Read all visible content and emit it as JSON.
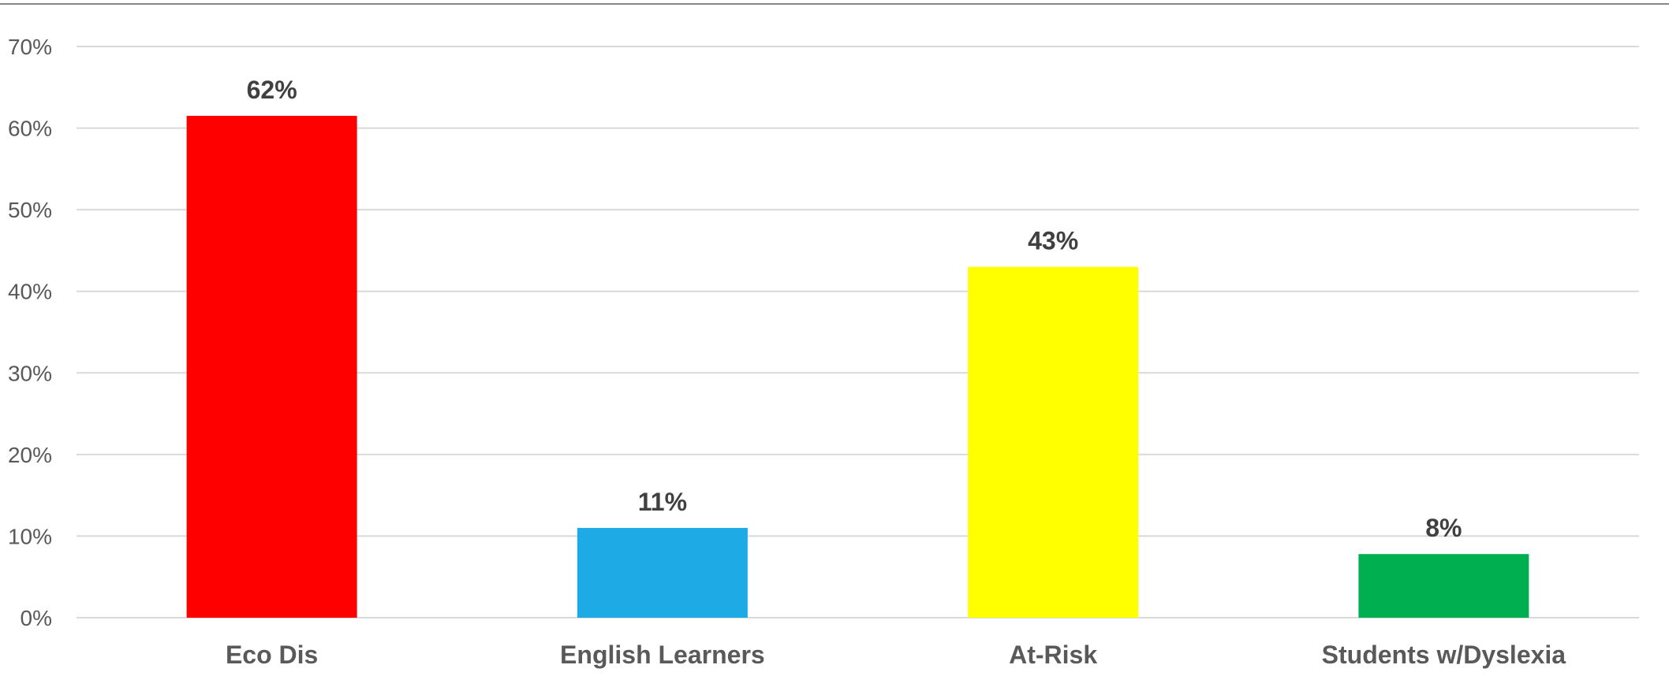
{
  "chart_data": {
    "type": "bar",
    "title": "",
    "xlabel": "",
    "ylabel": "",
    "categories": [
      "Eco Dis",
      "English Learners",
      "At-Risk",
      "Students w/Dyslexia"
    ],
    "values": [
      0.615,
      0.11,
      0.43,
      0.078
    ],
    "data_labels": [
      "62%",
      "11%",
      "43%",
      "8%"
    ],
    "colors": [
      "#ff0000",
      "#1eaae4",
      "#ffff00",
      "#00b050"
    ],
    "ylim": [
      0,
      0.7
    ],
    "yticks": [
      0,
      0.1,
      0.2,
      0.3,
      0.4,
      0.5,
      0.6,
      0.7
    ],
    "ytick_labels": [
      "0%",
      "10%",
      "20%",
      "30%",
      "40%",
      "50%",
      "60%",
      "70%"
    ],
    "grid": true,
    "legend": "none"
  }
}
